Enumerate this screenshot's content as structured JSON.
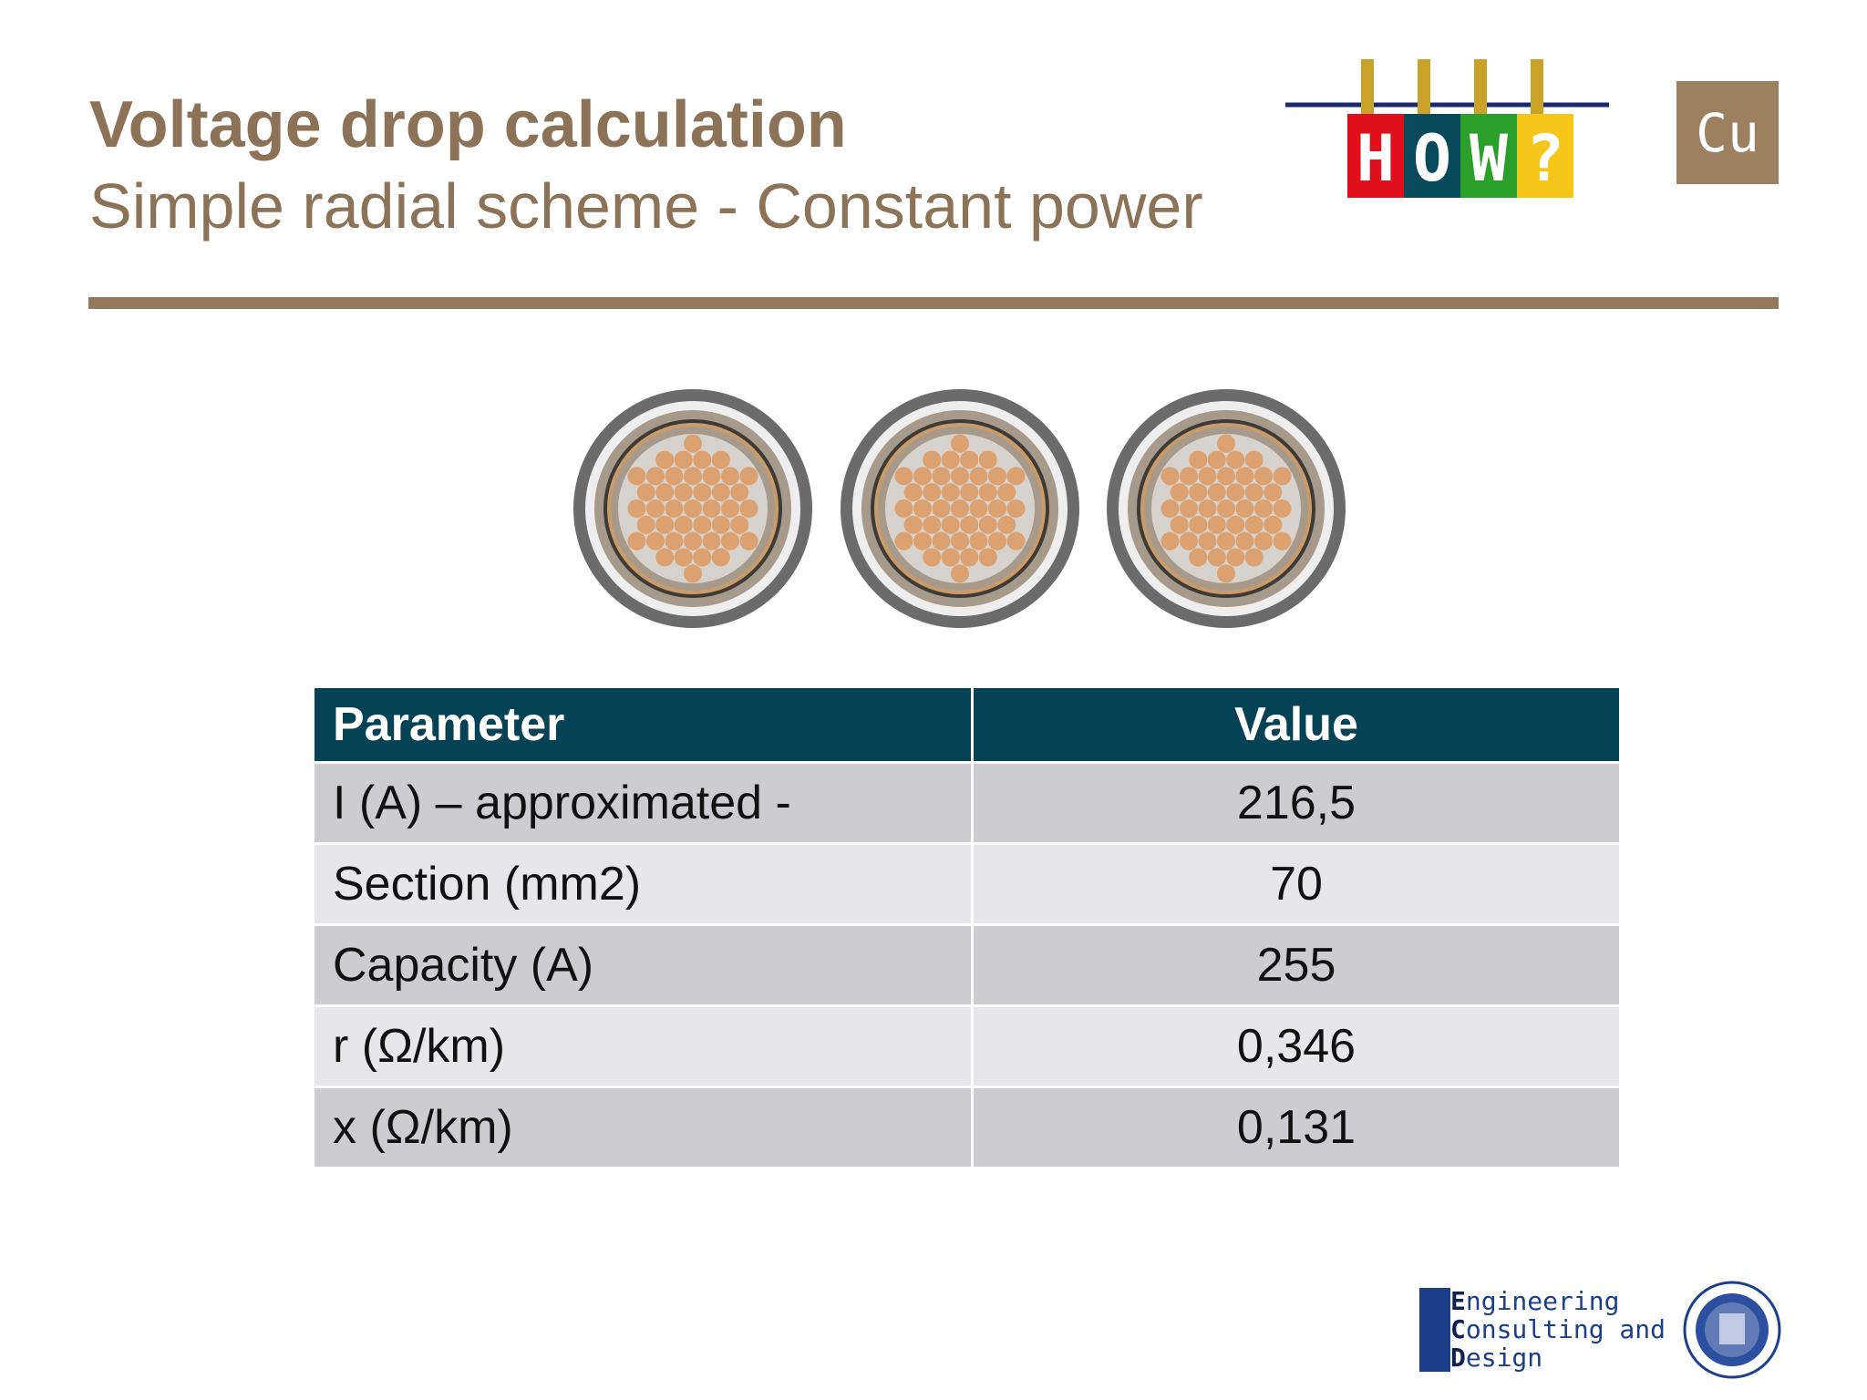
{
  "header": {
    "title": "Voltage drop calculation",
    "subtitle": "Simple radial scheme - Constant power"
  },
  "logo": {
    "letters": [
      "H",
      "O",
      "W",
      "?"
    ],
    "badge": "Cu"
  },
  "table": {
    "columns": [
      "Parameter",
      "Value"
    ],
    "rows": [
      [
        "I (A) – approximated -",
        "216,5"
      ],
      [
        "Section (mm2)",
        "70"
      ],
      [
        "Capacity (A)",
        "255"
      ],
      [
        "r (Ω/km)",
        "0,346"
      ],
      [
        "x  (Ω/km)",
        "0,131"
      ]
    ]
  },
  "footer": {
    "company": [
      "Engineering",
      "Consulting and",
      "Design"
    ]
  }
}
